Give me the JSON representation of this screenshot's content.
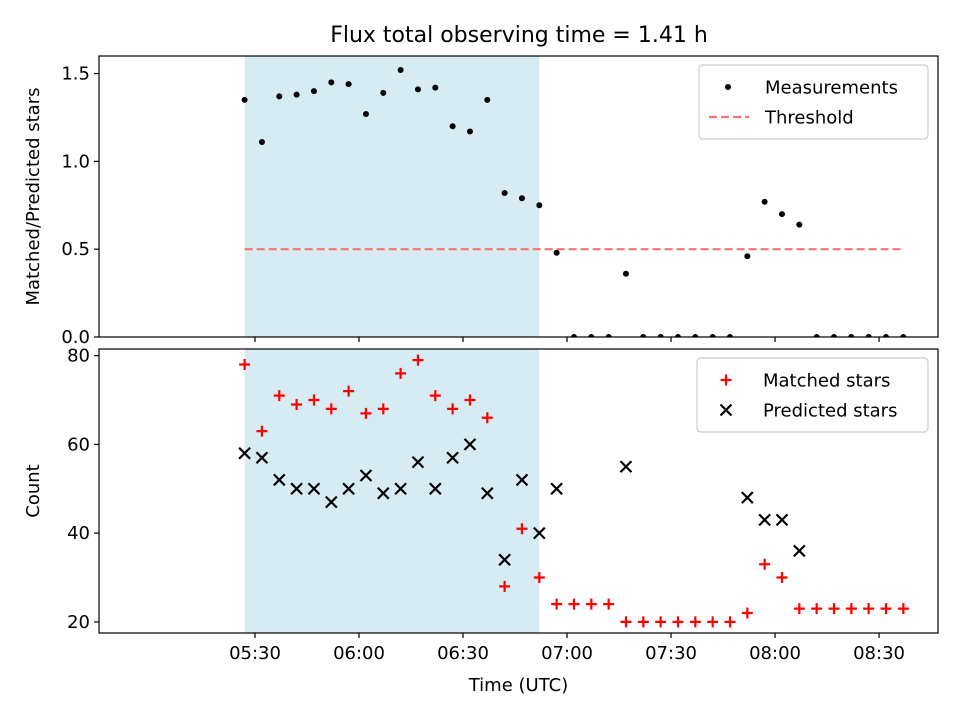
{
  "chart_data": [
    {
      "type": "scatter",
      "title": "Flux total observing time = 1.41 h",
      "ylabel": "Matched/Predicted stars",
      "xlabel": "",
      "x_unit": "minutes since 05:00 UTC",
      "xlim": [
        -15,
        227
      ],
      "ylim": [
        0,
        1.6
      ],
      "yticks": [
        0.0,
        0.5,
        1.0,
        1.5
      ],
      "ytick_labels": [
        "0.0",
        "0.5",
        "1.0",
        "1.5"
      ],
      "highlight_span": [
        27,
        112
      ],
      "legend_location": "upper right",
      "series": [
        {
          "name": "Measurements",
          "marker": "dot",
          "color": "#000000",
          "x": [
            27,
            32,
            37,
            42,
            47,
            52,
            57,
            62,
            67,
            72,
            77,
            82,
            87,
            92,
            97,
            102,
            107,
            112,
            117,
            122,
            127,
            132,
            137,
            142,
            147,
            152,
            157,
            162,
            167,
            172,
            177,
            182,
            187,
            192,
            197,
            202,
            207,
            212,
            217
          ],
          "y": [
            1.35,
            1.11,
            1.37,
            1.38,
            1.4,
            1.45,
            1.44,
            1.27,
            1.39,
            1.52,
            1.41,
            1.42,
            1.2,
            1.17,
            1.35,
            0.82,
            0.79,
            0.75,
            0.48,
            0.0,
            0.0,
            0.0,
            0.36,
            0.0,
            0.0,
            0.0,
            0.0,
            0.0,
            0.0,
            0.46,
            0.77,
            0.7,
            0.64,
            0.0,
            0.0,
            0.0,
            0.0,
            0.0,
            0.0
          ]
        },
        {
          "name": "Threshold",
          "style": "dashed",
          "color": "#ff7070",
          "x": [
            27,
            217
          ],
          "y": [
            0.5,
            0.5
          ]
        }
      ]
    },
    {
      "type": "scatter",
      "title": "",
      "ylabel": "Count",
      "xlabel": "Time (UTC)",
      "x_unit": "minutes since 05:00 UTC",
      "xlim": [
        -15,
        227
      ],
      "ylim": [
        17.5,
        81.5
      ],
      "yticks": [
        20,
        40,
        60,
        80
      ],
      "ytick_labels": [
        "20",
        "40",
        "60",
        "80"
      ],
      "xticks": [
        30,
        60,
        90,
        120,
        150,
        180,
        210
      ],
      "xtick_labels": [
        "05:30",
        "06:00",
        "06:30",
        "07:00",
        "07:30",
        "08:00",
        "08:30"
      ],
      "highlight_span": [
        27,
        112
      ],
      "legend_location": "upper right",
      "series": [
        {
          "name": "Matched stars",
          "marker": "plus",
          "color": "#ff0000",
          "x": [
            27,
            32,
            37,
            42,
            47,
            52,
            57,
            62,
            67,
            72,
            77,
            82,
            87,
            92,
            97,
            102,
            107,
            112,
            117,
            122,
            127,
            132,
            137,
            142,
            147,
            152,
            157,
            162,
            167,
            172,
            177,
            182,
            187,
            192,
            197,
            202,
            207,
            212,
            217
          ],
          "y": [
            78,
            63,
            71,
            69,
            70,
            68,
            72,
            67,
            68,
            76,
            79,
            71,
            68,
            70,
            66,
            28,
            41,
            30,
            24,
            24,
            24,
            24,
            20,
            20,
            20,
            20,
            20,
            20,
            20,
            22,
            33,
            30,
            23,
            23,
            23,
            23,
            23,
            23,
            23
          ]
        },
        {
          "name": "Predicted stars",
          "marker": "x",
          "color": "#000000",
          "x": [
            27,
            32,
            37,
            42,
            47,
            52,
            57,
            62,
            67,
            72,
            77,
            82,
            87,
            92,
            97,
            102,
            107,
            112,
            117,
            137,
            172,
            177,
            182,
            187
          ],
          "y": [
            58,
            57,
            52,
            50,
            50,
            47,
            50,
            53,
            49,
            50,
            56,
            50,
            57,
            60,
            49,
            34,
            52,
            40,
            50,
            55,
            48,
            43,
            43,
            36
          ]
        }
      ]
    }
  ],
  "colors": {
    "highlight_fill": "#add8e6",
    "axis": "#000000"
  }
}
